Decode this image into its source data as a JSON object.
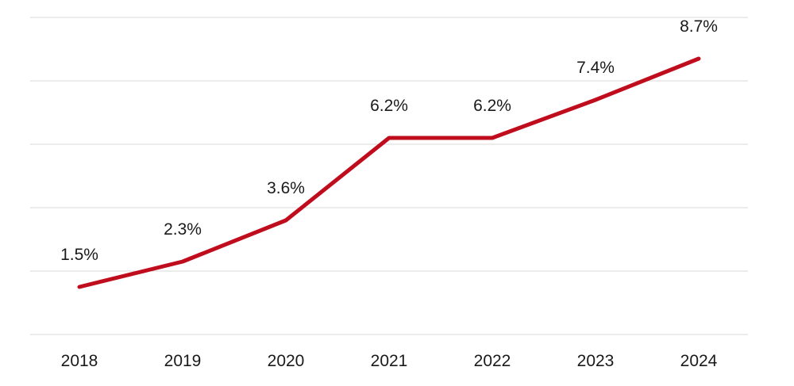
{
  "chart_data": {
    "type": "line",
    "title": "",
    "xlabel": "",
    "ylabel": "",
    "categories": [
      "2018",
      "2019",
      "2020",
      "2021",
      "2022",
      "2023",
      "2024"
    ],
    "series": [
      {
        "values": [
          1.5,
          2.3,
          3.6,
          6.2,
          6.2,
          7.4,
          8.7
        ],
        "data_labels": [
          "1.5%",
          "2.3%",
          "3.6%",
          "6.2%",
          "6.2%",
          "7.4%",
          "8.7%"
        ],
        "color": "#c00d1e"
      }
    ],
    "ylim": [
      0,
      10
    ],
    "gridlines": [
      0,
      2,
      4,
      6,
      8,
      10
    ],
    "grid": "horizontal",
    "legend": "none",
    "y_tick_labels_visible": false
  }
}
